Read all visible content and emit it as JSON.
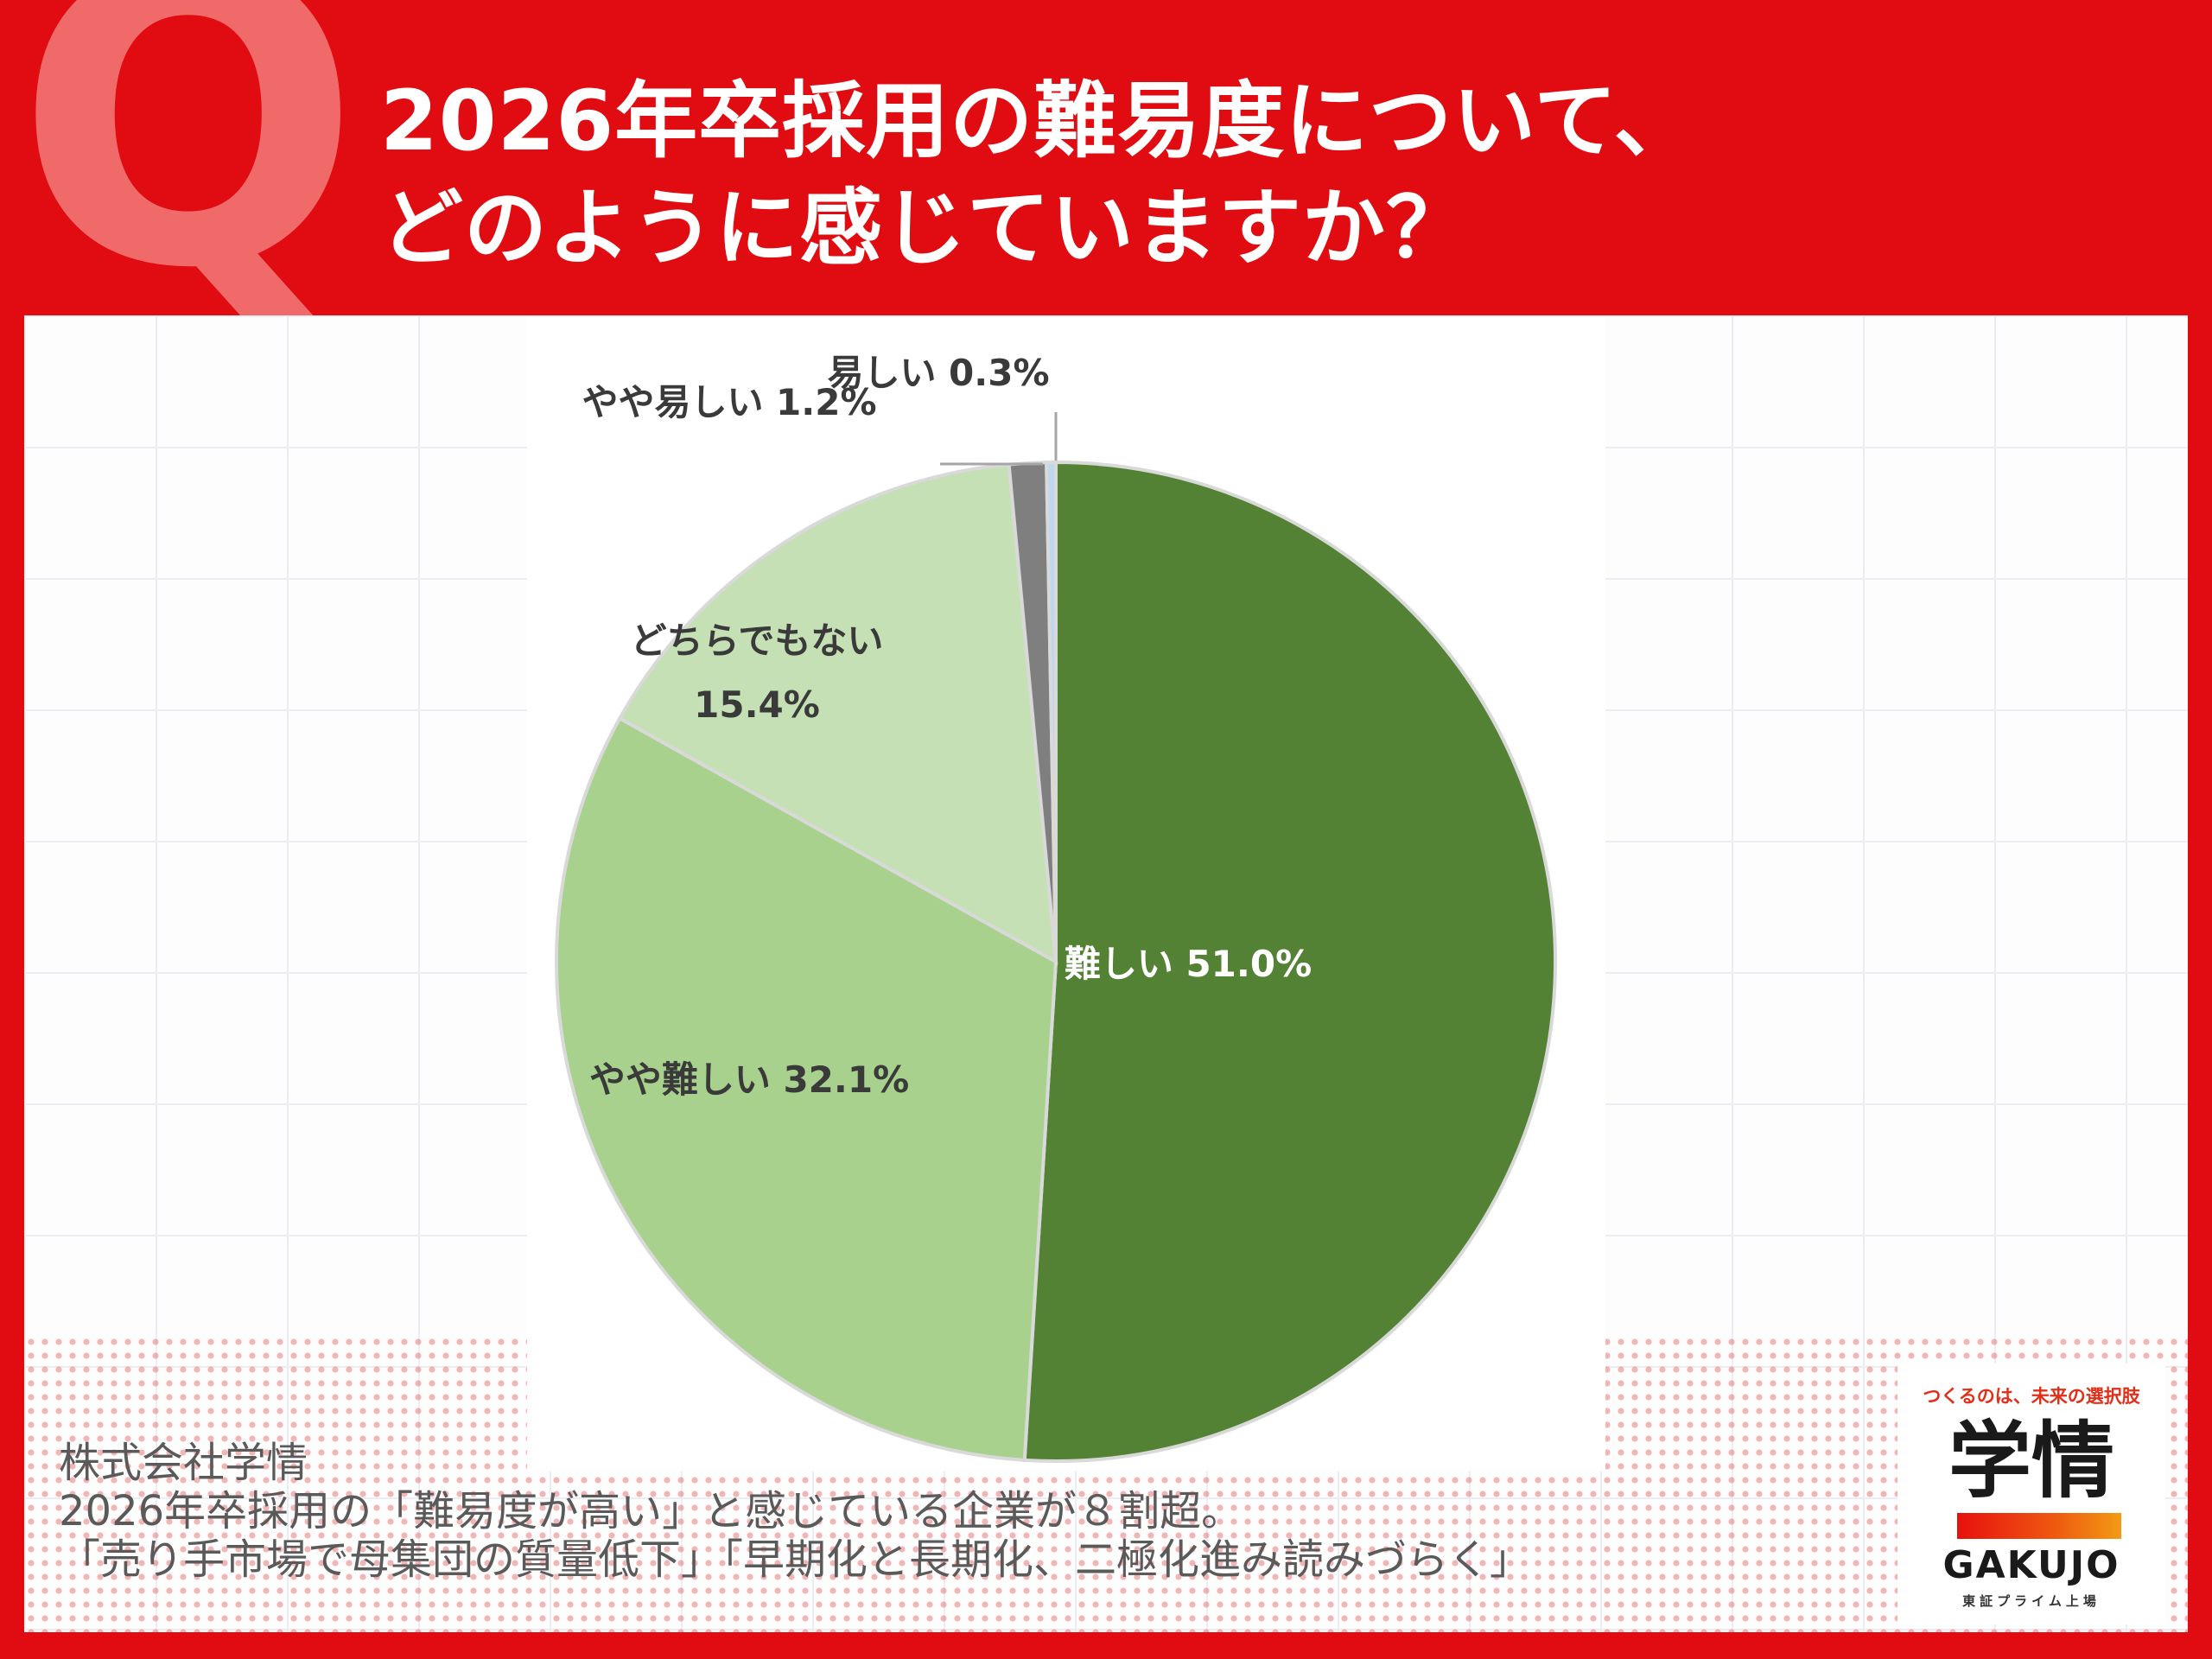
{
  "header": {
    "badge": "Q",
    "title_line1": "2026年卒採用の難易度について、",
    "title_line2": "どのように感じていますか？"
  },
  "chart_data": {
    "type": "pie",
    "title": "",
    "slices": [
      {
        "label": "難しい",
        "value_label": "51.0%",
        "value": 51.0,
        "color": "#548235"
      },
      {
        "label": "やや難しい",
        "value_label": "32.1%",
        "value": 32.1,
        "color": "#a9d18e"
      },
      {
        "label": "どちらでもない",
        "value_label": "15.4%",
        "value": 15.4,
        "color": "#c5e0b4"
      },
      {
        "label": "やや易しい",
        "value_label": "1.2%",
        "value": 1.2,
        "color": "#7f7f7f"
      },
      {
        "label": "易しい",
        "value_label": "0.3%",
        "value": 0.3,
        "color": "#bdd7ee"
      }
    ],
    "label_text_color": "#3a3a3a",
    "inner_label_color": "#ffffff"
  },
  "source": {
    "company": "株式会社学情",
    "line1": "2026年卒採用の「難易度が高い」と感じている企業が８割超。",
    "line2": "「売り手市場で母集団の質量低下」「早期化と長期化、二極化進み読みづらく」"
  },
  "logo": {
    "tagline": "つくるのは、未来の選択肢",
    "name": "学情",
    "name_en": "GAKUJO",
    "sub": "東証プライム上場"
  }
}
